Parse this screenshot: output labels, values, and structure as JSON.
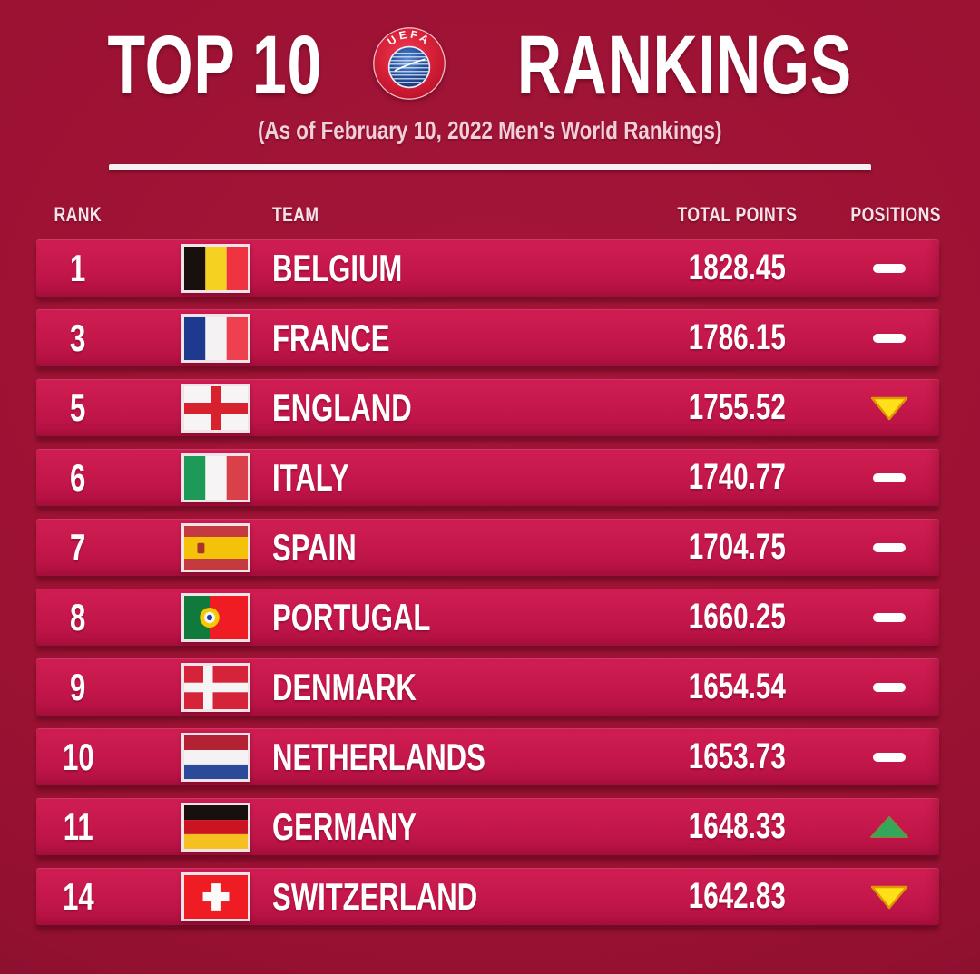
{
  "header": {
    "title_left": "TOP 10",
    "title_right": "RANKINGS",
    "logo": "uefa-logo",
    "logo_text": "UEFA",
    "subtitle": "(As of February 10, 2022 Men's World Rankings)"
  },
  "table": {
    "columns": [
      "RANK",
      "TEAM",
      "TOTAL POINTS",
      "POSITIONS"
    ],
    "rows": [
      {
        "rank": "1",
        "team": "BELGIUM",
        "flag": "belgium",
        "points": "1828.45",
        "position": "same"
      },
      {
        "rank": "3",
        "team": "FRANCE",
        "flag": "france",
        "points": "1786.15",
        "position": "same"
      },
      {
        "rank": "5",
        "team": "ENGLAND",
        "flag": "england",
        "points": "1755.52",
        "position": "down"
      },
      {
        "rank": "6",
        "team": "ITALY",
        "flag": "italy",
        "points": "1740.77",
        "position": "same"
      },
      {
        "rank": "7",
        "team": "SPAIN",
        "flag": "spain",
        "points": "1704.75",
        "position": "same"
      },
      {
        "rank": "8",
        "team": "PORTUGAL",
        "flag": "portugal",
        "points": "1660.25",
        "position": "same"
      },
      {
        "rank": "9",
        "team": "DENMARK",
        "flag": "denmark",
        "points": "1654.54",
        "position": "same"
      },
      {
        "rank": "10",
        "team": "NETHERLANDS",
        "flag": "netherlands",
        "points": "1653.73",
        "position": "same"
      },
      {
        "rank": "11",
        "team": "GERMANY",
        "flag": "germany",
        "points": "1648.33",
        "position": "up"
      },
      {
        "rank": "14",
        "team": "SWITZERLAND",
        "flag": "switzerland",
        "points": "1642.83",
        "position": "down"
      }
    ]
  },
  "colors": {
    "background": "#9C1233",
    "row": "#C5174B",
    "indicator_same": "#FFFFFF",
    "indicator_down": "#FFDE1A",
    "indicator_down_border": "#DD9A00",
    "indicator_up": "#33A85C",
    "indicator_up_border": "#6E8F43"
  }
}
